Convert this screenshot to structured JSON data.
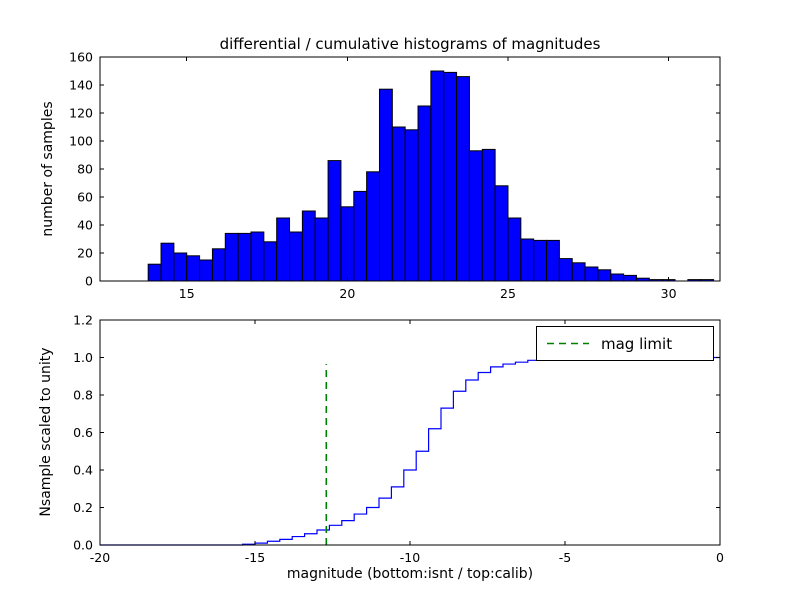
{
  "figure": {
    "title": "differential / cumulative histograms of magnitudes",
    "xlabel": "magnitude (bottom:isnt / top:calib)",
    "top_ylabel": "number of samples",
    "bottom_ylabel": "Nsample scaled to unity",
    "background_color": "#ffffff",
    "legend": {
      "label": "mag limit",
      "line_color": "#008000",
      "line_style": "dashed"
    }
  },
  "chart_data": [
    {
      "type": "bar",
      "title": "differential / cumulative histograms of magnitudes",
      "ylabel": "number of samples",
      "bar_color": "#0000ff",
      "edge_color": "#000000",
      "xlim": [
        12.3,
        31.6
      ],
      "ylim": [
        0,
        160
      ],
      "xticks": [
        15,
        20,
        25,
        30
      ],
      "xticklabels": [
        "15",
        "20",
        "25",
        "30"
      ],
      "yticks": [
        0,
        20,
        40,
        60,
        80,
        100,
        120,
        140,
        160
      ],
      "yticklabels": [
        "0",
        "20",
        "40",
        "60",
        "80",
        "100",
        "120",
        "140",
        "160"
      ],
      "bin_start": 13.8,
      "bin_width": 0.4,
      "values": [
        12,
        27,
        20,
        18,
        15,
        23,
        34,
        34,
        35,
        28,
        45,
        35,
        50,
        45,
        86,
        53,
        64,
        78,
        137,
        110,
        108,
        125,
        150,
        149,
        146,
        93,
        94,
        68,
        45,
        30,
        29,
        29,
        16,
        13,
        10,
        8,
        5,
        4,
        2,
        1,
        1,
        0,
        1,
        1
      ]
    },
    {
      "type": "line",
      "step": true,
      "ylabel": "Nsample scaled to unity",
      "xlabel": "magnitude (bottom:isnt / top:calib)",
      "line_color": "#0000ff",
      "xlim": [
        -20,
        0
      ],
      "ylim": [
        0,
        1.2
      ],
      "xticks": [
        -20,
        -15,
        -10,
        -5,
        0
      ],
      "xticklabels": [
        "-20",
        "-15",
        "-10",
        "-5",
        "0"
      ],
      "yticks": [
        0.0,
        0.2,
        0.4,
        0.6,
        0.8,
        1.0,
        1.2
      ],
      "yticklabels": [
        "0.0",
        "0.2",
        "0.4",
        "0.6",
        "0.8",
        "1.0",
        "1.2"
      ],
      "x": [
        -20,
        -15.4,
        -15.0,
        -14.6,
        -14.2,
        -13.8,
        -13.4,
        -13.0,
        -12.6,
        -12.2,
        -11.8,
        -11.4,
        -11.0,
        -10.6,
        -10.2,
        -9.8,
        -9.4,
        -9.0,
        -8.6,
        -8.2,
        -7.8,
        -7.4,
        -7.0,
        -6.6,
        -6.2,
        -5.8,
        -5.4,
        -5.0,
        -4.6,
        -4.2,
        0
      ],
      "y": [
        0,
        0.004,
        0.01,
        0.02,
        0.03,
        0.045,
        0.06,
        0.08,
        0.105,
        0.13,
        0.165,
        0.2,
        0.25,
        0.31,
        0.4,
        0.5,
        0.62,
        0.73,
        0.82,
        0.88,
        0.92,
        0.95,
        0.965,
        0.975,
        0.985,
        0.99,
        0.994,
        0.996,
        0.998,
        1.0,
        1.0
      ],
      "vline": {
        "x": -12.7,
        "ymin": 0,
        "ymax": 0.965,
        "color": "#008000",
        "style": "dashed",
        "label": "mag limit"
      },
      "legend_position": "upper right"
    }
  ]
}
